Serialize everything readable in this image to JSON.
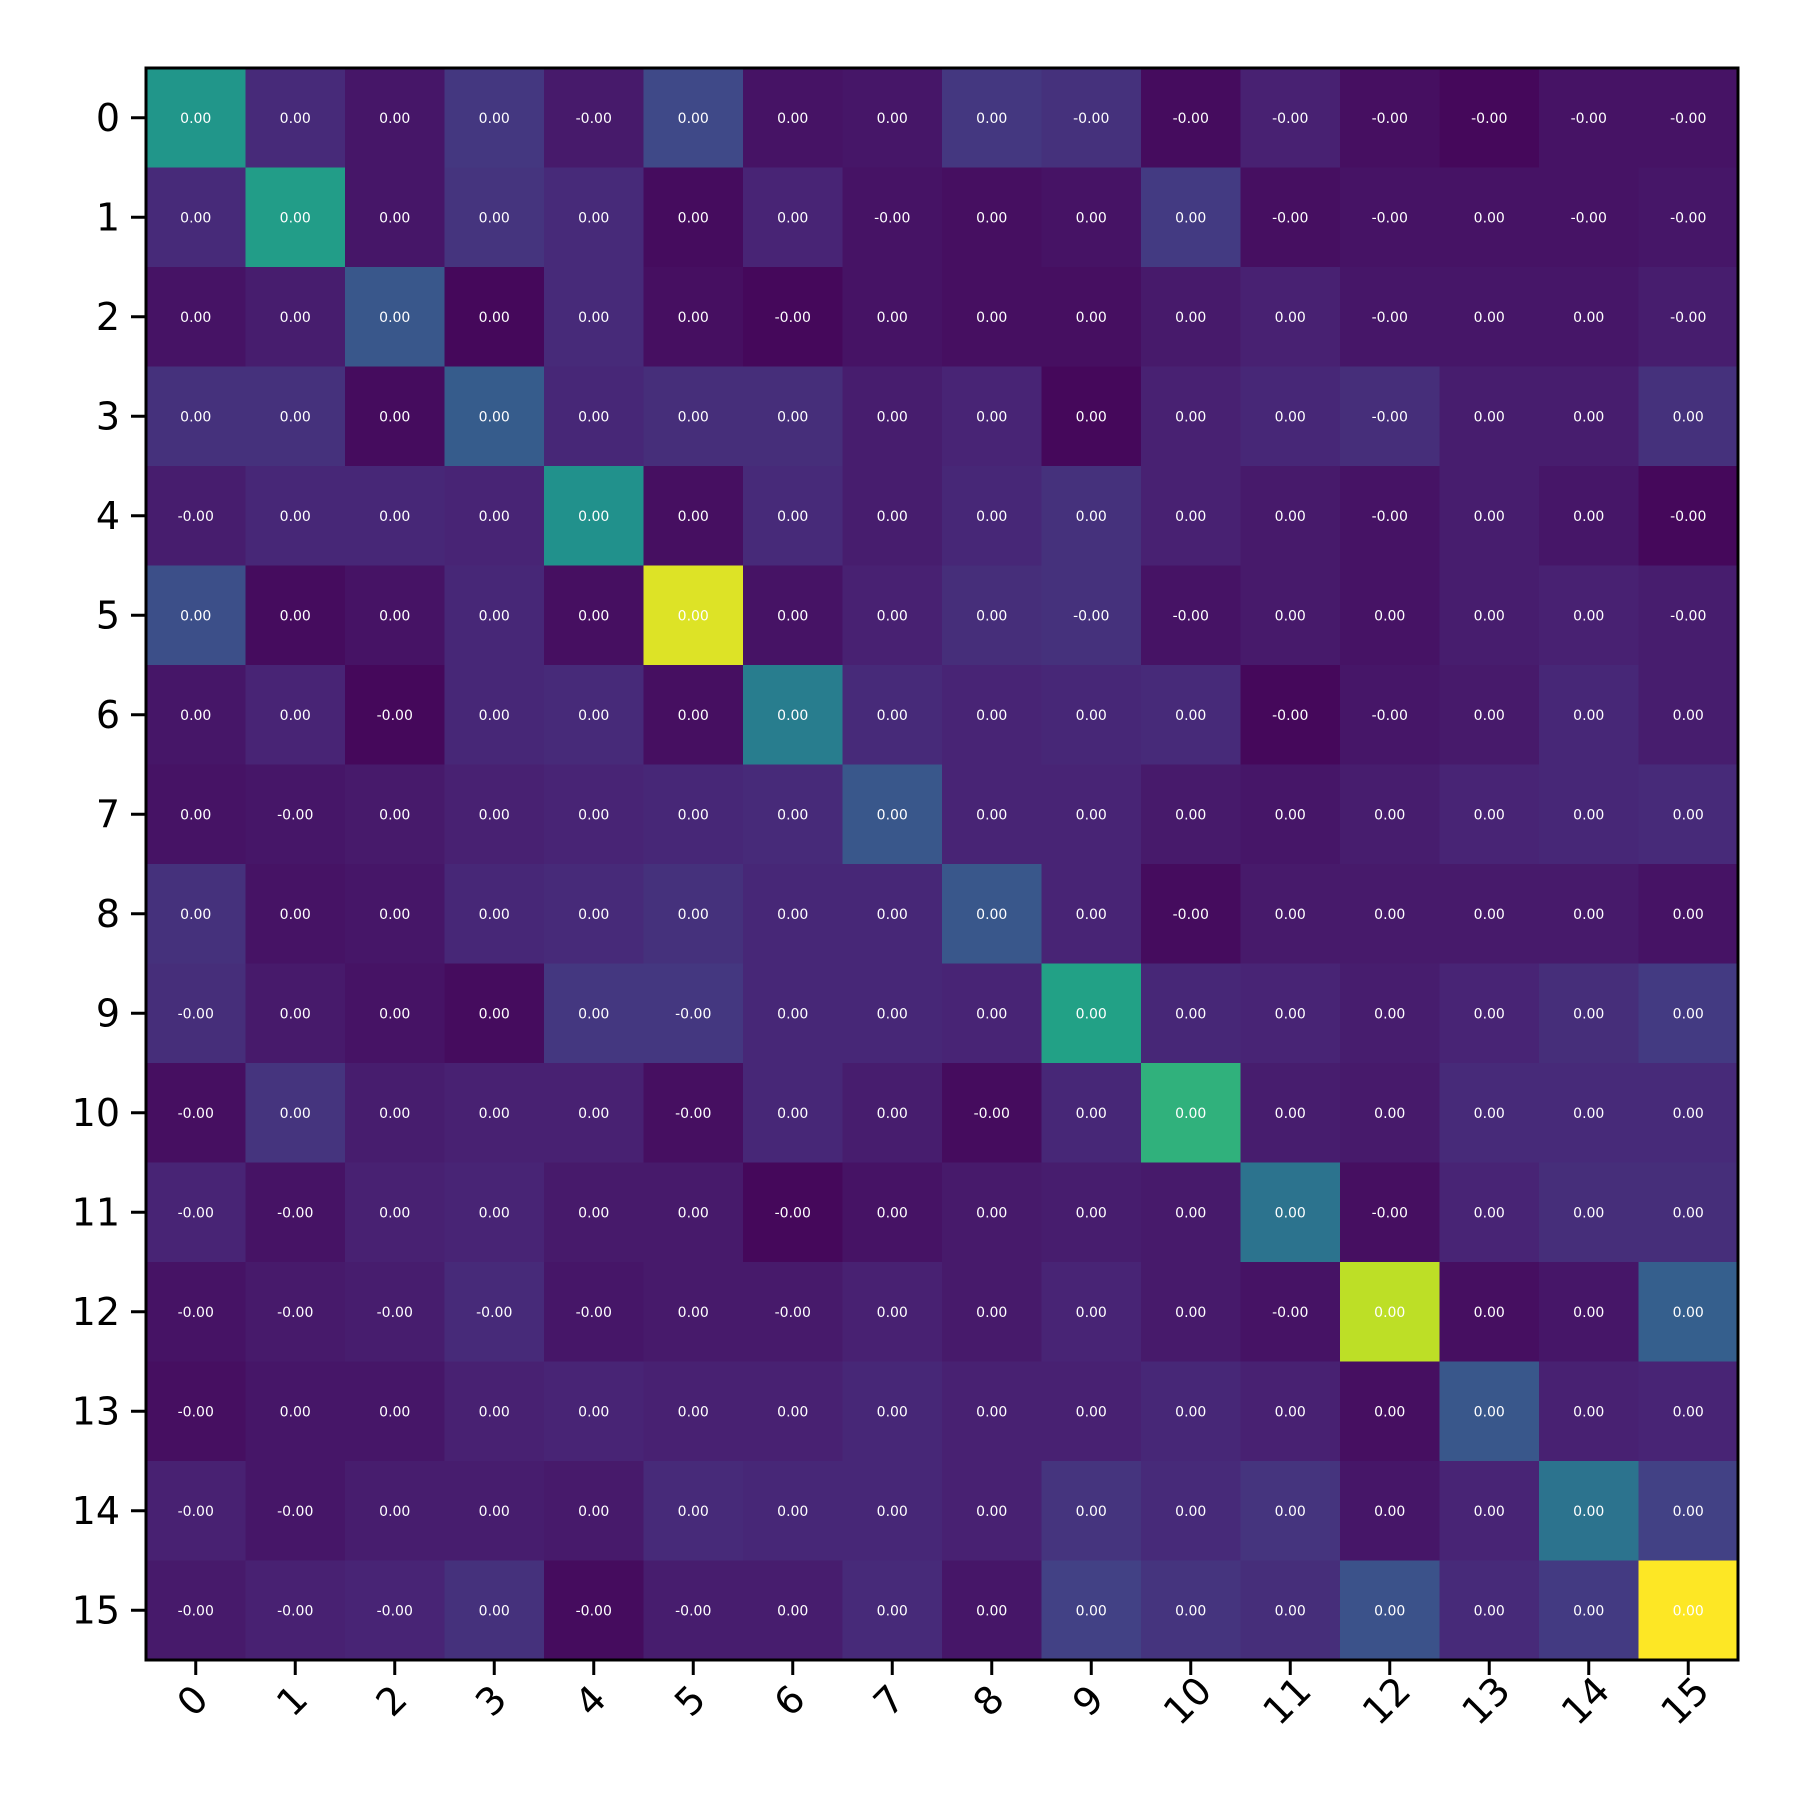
{
  "chart_data": {
    "type": "heatmap",
    "title": "",
    "xlabel": "",
    "ylabel": "",
    "grid": false,
    "colormap": "viridis",
    "x_categories": [
      "0",
      "1",
      "2",
      "3",
      "4",
      "5",
      "6",
      "7",
      "8",
      "9",
      "10",
      "11",
      "12",
      "13",
      "14",
      "15"
    ],
    "y_categories": [
      "0",
      "1",
      "2",
      "3",
      "4",
      "5",
      "6",
      "7",
      "8",
      "9",
      "10",
      "11",
      "12",
      "13",
      "14",
      "15"
    ],
    "color_levels": [
      [
        0.52,
        0.12,
        0.06,
        0.16,
        0.07,
        0.22,
        0.05,
        0.06,
        0.16,
        0.14,
        0.03,
        0.09,
        0.04,
        0.02,
        0.05,
        0.05
      ],
      [
        0.12,
        0.55,
        0.06,
        0.15,
        0.12,
        0.03,
        0.1,
        0.05,
        0.04,
        0.05,
        0.17,
        0.04,
        0.05,
        0.05,
        0.05,
        0.06
      ],
      [
        0.05,
        0.08,
        0.27,
        0.02,
        0.12,
        0.04,
        0.02,
        0.05,
        0.04,
        0.04,
        0.07,
        0.09,
        0.06,
        0.06,
        0.06,
        0.08
      ],
      [
        0.14,
        0.14,
        0.03,
        0.29,
        0.11,
        0.13,
        0.13,
        0.08,
        0.1,
        0.02,
        0.09,
        0.11,
        0.13,
        0.08,
        0.08,
        0.14
      ],
      [
        0.08,
        0.11,
        0.11,
        0.1,
        0.5,
        0.04,
        0.12,
        0.08,
        0.11,
        0.14,
        0.09,
        0.07,
        0.05,
        0.08,
        0.06,
        0.02
      ],
      [
        0.24,
        0.03,
        0.05,
        0.11,
        0.04,
        0.95,
        0.05,
        0.09,
        0.13,
        0.14,
        0.05,
        0.07,
        0.05,
        0.08,
        0.09,
        0.08
      ],
      [
        0.06,
        0.1,
        0.02,
        0.11,
        0.12,
        0.04,
        0.42,
        0.12,
        0.1,
        0.11,
        0.12,
        0.02,
        0.06,
        0.07,
        0.11,
        0.08
      ],
      [
        0.05,
        0.06,
        0.07,
        0.09,
        0.1,
        0.11,
        0.12,
        0.27,
        0.1,
        0.1,
        0.07,
        0.06,
        0.08,
        0.1,
        0.11,
        0.12
      ],
      [
        0.14,
        0.05,
        0.06,
        0.11,
        0.12,
        0.14,
        0.11,
        0.11,
        0.27,
        0.1,
        0.03,
        0.07,
        0.07,
        0.07,
        0.07,
        0.05
      ],
      [
        0.13,
        0.07,
        0.05,
        0.03,
        0.16,
        0.16,
        0.11,
        0.11,
        0.1,
        0.57,
        0.11,
        0.1,
        0.08,
        0.1,
        0.13,
        0.17
      ],
      [
        0.04,
        0.15,
        0.08,
        0.09,
        0.09,
        0.04,
        0.11,
        0.08,
        0.03,
        0.11,
        0.64,
        0.08,
        0.07,
        0.12,
        0.12,
        0.12
      ],
      [
        0.1,
        0.05,
        0.09,
        0.1,
        0.07,
        0.07,
        0.02,
        0.05,
        0.07,
        0.08,
        0.07,
        0.38,
        0.04,
        0.1,
        0.13,
        0.13
      ],
      [
        0.05,
        0.07,
        0.08,
        0.12,
        0.06,
        0.07,
        0.07,
        0.09,
        0.07,
        0.1,
        0.07,
        0.05,
        0.9,
        0.04,
        0.06,
        0.3
      ],
      [
        0.04,
        0.06,
        0.06,
        0.09,
        0.1,
        0.09,
        0.09,
        0.11,
        0.09,
        0.09,
        0.11,
        0.09,
        0.04,
        0.27,
        0.09,
        0.1
      ],
      [
        0.09,
        0.06,
        0.08,
        0.08,
        0.07,
        0.12,
        0.11,
        0.11,
        0.09,
        0.15,
        0.12,
        0.15,
        0.06,
        0.1,
        0.38,
        0.19
      ],
      [
        0.07,
        0.09,
        0.1,
        0.14,
        0.03,
        0.08,
        0.08,
        0.12,
        0.06,
        0.19,
        0.15,
        0.13,
        0.25,
        0.12,
        0.17,
        1.0
      ]
    ],
    "cell_labels": [
      [
        "0.00",
        "0.00",
        "0.00",
        "0.00",
        "-0.00",
        "0.00",
        "0.00",
        "0.00",
        "0.00",
        "-0.00",
        "-0.00",
        "-0.00",
        "-0.00",
        "-0.00",
        "-0.00",
        "-0.00"
      ],
      [
        "0.00",
        "0.00",
        "0.00",
        "0.00",
        "0.00",
        "0.00",
        "0.00",
        "-0.00",
        "0.00",
        "0.00",
        "0.00",
        "-0.00",
        "-0.00",
        "0.00",
        "-0.00",
        "-0.00"
      ],
      [
        "0.00",
        "0.00",
        "0.00",
        "0.00",
        "0.00",
        "0.00",
        "-0.00",
        "0.00",
        "0.00",
        "0.00",
        "0.00",
        "0.00",
        "-0.00",
        "0.00",
        "0.00",
        "-0.00"
      ],
      [
        "0.00",
        "0.00",
        "0.00",
        "0.00",
        "0.00",
        "0.00",
        "0.00",
        "0.00",
        "0.00",
        "0.00",
        "0.00",
        "0.00",
        "-0.00",
        "0.00",
        "0.00",
        "0.00"
      ],
      [
        "-0.00",
        "0.00",
        "0.00",
        "0.00",
        "0.00",
        "0.00",
        "0.00",
        "0.00",
        "0.00",
        "0.00",
        "0.00",
        "0.00",
        "-0.00",
        "0.00",
        "0.00",
        "-0.00"
      ],
      [
        "0.00",
        "0.00",
        "0.00",
        "0.00",
        "0.00",
        "0.00",
        "0.00",
        "0.00",
        "0.00",
        "-0.00",
        "-0.00",
        "0.00",
        "0.00",
        "0.00",
        "0.00",
        "-0.00"
      ],
      [
        "0.00",
        "0.00",
        "-0.00",
        "0.00",
        "0.00",
        "0.00",
        "0.00",
        "0.00",
        "0.00",
        "0.00",
        "0.00",
        "-0.00",
        "-0.00",
        "0.00",
        "0.00",
        "0.00"
      ],
      [
        "0.00",
        "-0.00",
        "0.00",
        "0.00",
        "0.00",
        "0.00",
        "0.00",
        "0.00",
        "0.00",
        "0.00",
        "0.00",
        "0.00",
        "0.00",
        "0.00",
        "0.00",
        "0.00"
      ],
      [
        "0.00",
        "0.00",
        "0.00",
        "0.00",
        "0.00",
        "0.00",
        "0.00",
        "0.00",
        "0.00",
        "0.00",
        "-0.00",
        "0.00",
        "0.00",
        "0.00",
        "0.00",
        "0.00"
      ],
      [
        "-0.00",
        "0.00",
        "0.00",
        "0.00",
        "0.00",
        "-0.00",
        "0.00",
        "0.00",
        "0.00",
        "0.00",
        "0.00",
        "0.00",
        "0.00",
        "0.00",
        "0.00",
        "0.00"
      ],
      [
        "-0.00",
        "0.00",
        "0.00",
        "0.00",
        "0.00",
        "-0.00",
        "0.00",
        "0.00",
        "-0.00",
        "0.00",
        "0.00",
        "0.00",
        "0.00",
        "0.00",
        "0.00",
        "0.00"
      ],
      [
        "-0.00",
        "-0.00",
        "0.00",
        "0.00",
        "0.00",
        "0.00",
        "-0.00",
        "0.00",
        "0.00",
        "0.00",
        "0.00",
        "0.00",
        "-0.00",
        "0.00",
        "0.00",
        "0.00"
      ],
      [
        "-0.00",
        "-0.00",
        "-0.00",
        "-0.00",
        "-0.00",
        "0.00",
        "-0.00",
        "0.00",
        "0.00",
        "0.00",
        "0.00",
        "-0.00",
        "0.00",
        "0.00",
        "0.00",
        "0.00"
      ],
      [
        "-0.00",
        "0.00",
        "0.00",
        "0.00",
        "0.00",
        "0.00",
        "0.00",
        "0.00",
        "0.00",
        "0.00",
        "0.00",
        "0.00",
        "0.00",
        "0.00",
        "0.00",
        "0.00"
      ],
      [
        "-0.00",
        "-0.00",
        "0.00",
        "0.00",
        "0.00",
        "0.00",
        "0.00",
        "0.00",
        "0.00",
        "0.00",
        "0.00",
        "0.00",
        "0.00",
        "0.00",
        "0.00",
        "0.00"
      ],
      [
        "-0.00",
        "-0.00",
        "-0.00",
        "0.00",
        "-0.00",
        "-0.00",
        "0.00",
        "0.00",
        "0.00",
        "0.00",
        "0.00",
        "0.00",
        "0.00",
        "0.00",
        "0.00",
        "0.00"
      ]
    ]
  }
}
